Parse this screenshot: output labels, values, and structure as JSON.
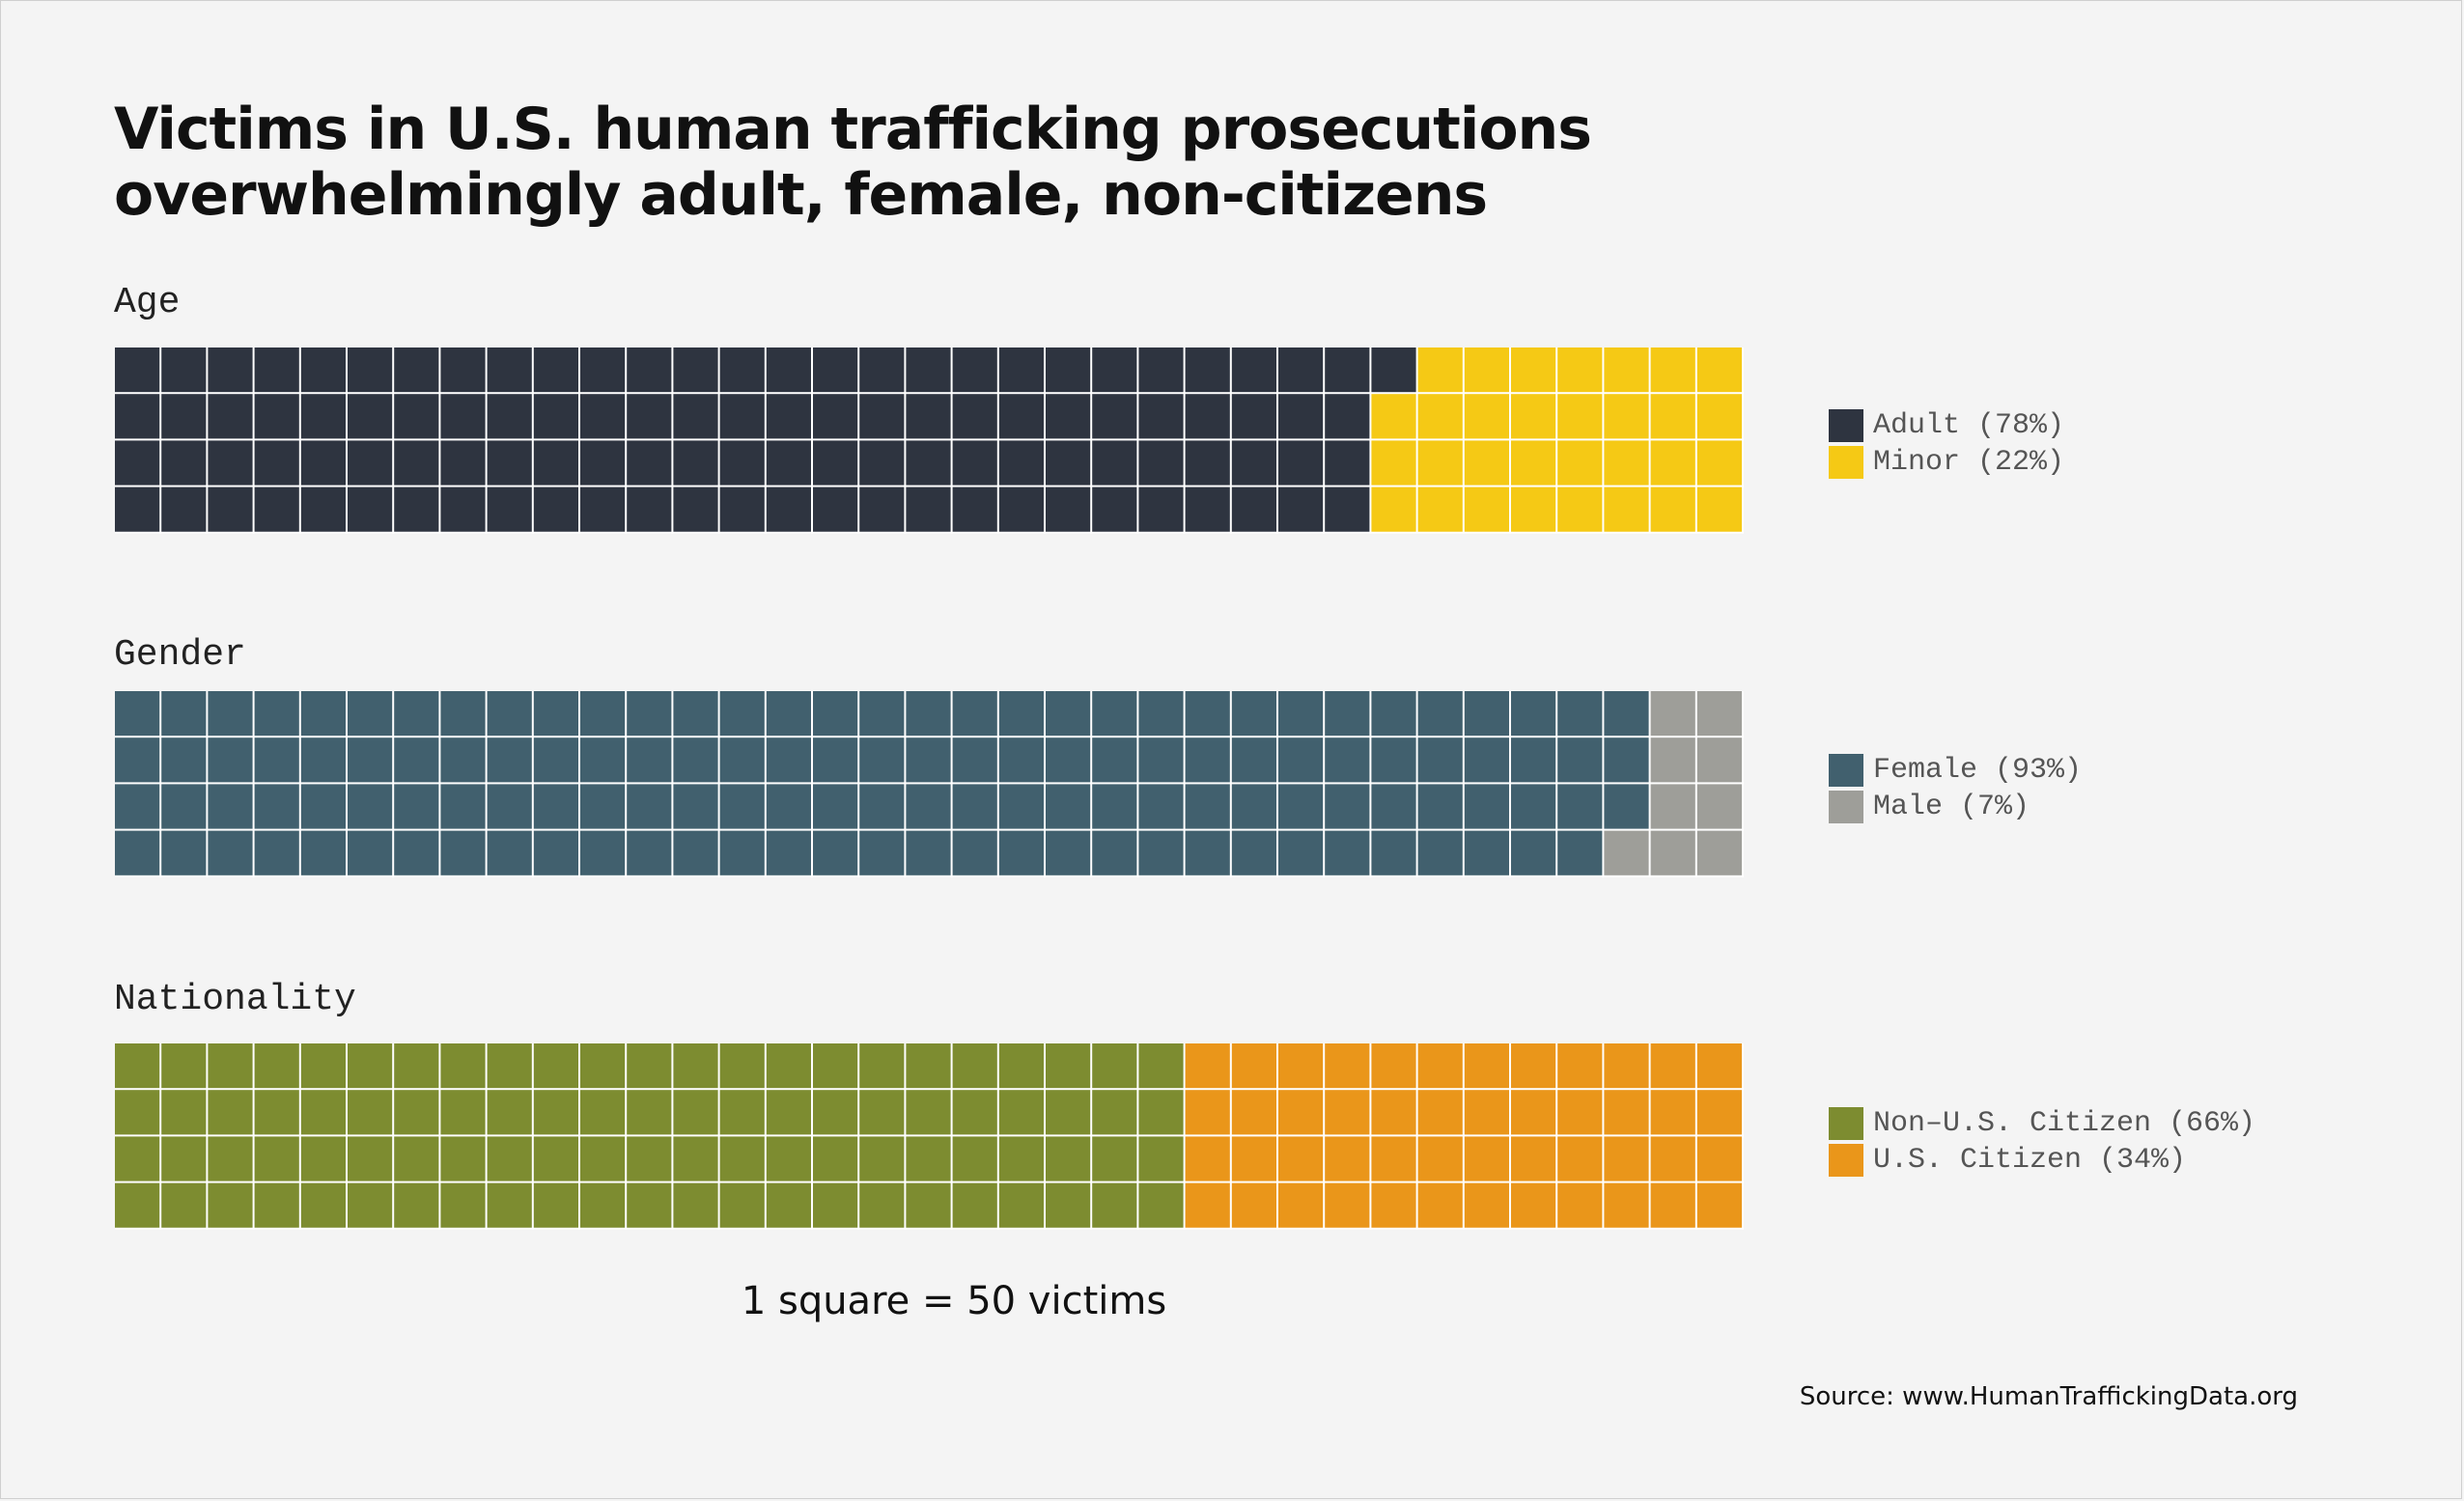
{
  "title_lines": [
    "Victims in U.S. human trafficking prosecutions",
    "overwhelmingly adult, female, non-citizens"
  ],
  "chart_data": [
    {
      "type": "waffle",
      "label": "Age",
      "categories": [
        {
          "name": "Adult",
          "legend": "Adult (78%)",
          "percent": 78,
          "squares": 109,
          "color": "#2e3440"
        },
        {
          "name": "Minor",
          "legend": "Minor (22%)",
          "percent": 22,
          "squares": 31,
          "color": "#f5c915"
        }
      ]
    },
    {
      "type": "waffle",
      "label": "Gender",
      "categories": [
        {
          "name": "Female",
          "legend": "Female (93%)",
          "percent": 93,
          "squares": 131,
          "color": "#41606e"
        },
        {
          "name": "Male",
          "legend": "Male (7%)",
          "percent": 7,
          "squares": 9,
          "color": "#9e9e99"
        }
      ]
    },
    {
      "type": "waffle",
      "label": "Nationality",
      "categories": [
        {
          "name": "Non-U.S. Citizen",
          "legend": "Non–U.S. Citizen (66%)",
          "percent": 66,
          "squares": 92,
          "color": "#7d8c30"
        },
        {
          "name": "U.S. Citizen",
          "legend": "U.S. Citizen (34%)",
          "percent": 34,
          "squares": 48,
          "color": "#ea961a"
        }
      ]
    }
  ],
  "scale_note": "1 square = 50 victims",
  "source": "Source: www.HumanTraffickingData.org"
}
